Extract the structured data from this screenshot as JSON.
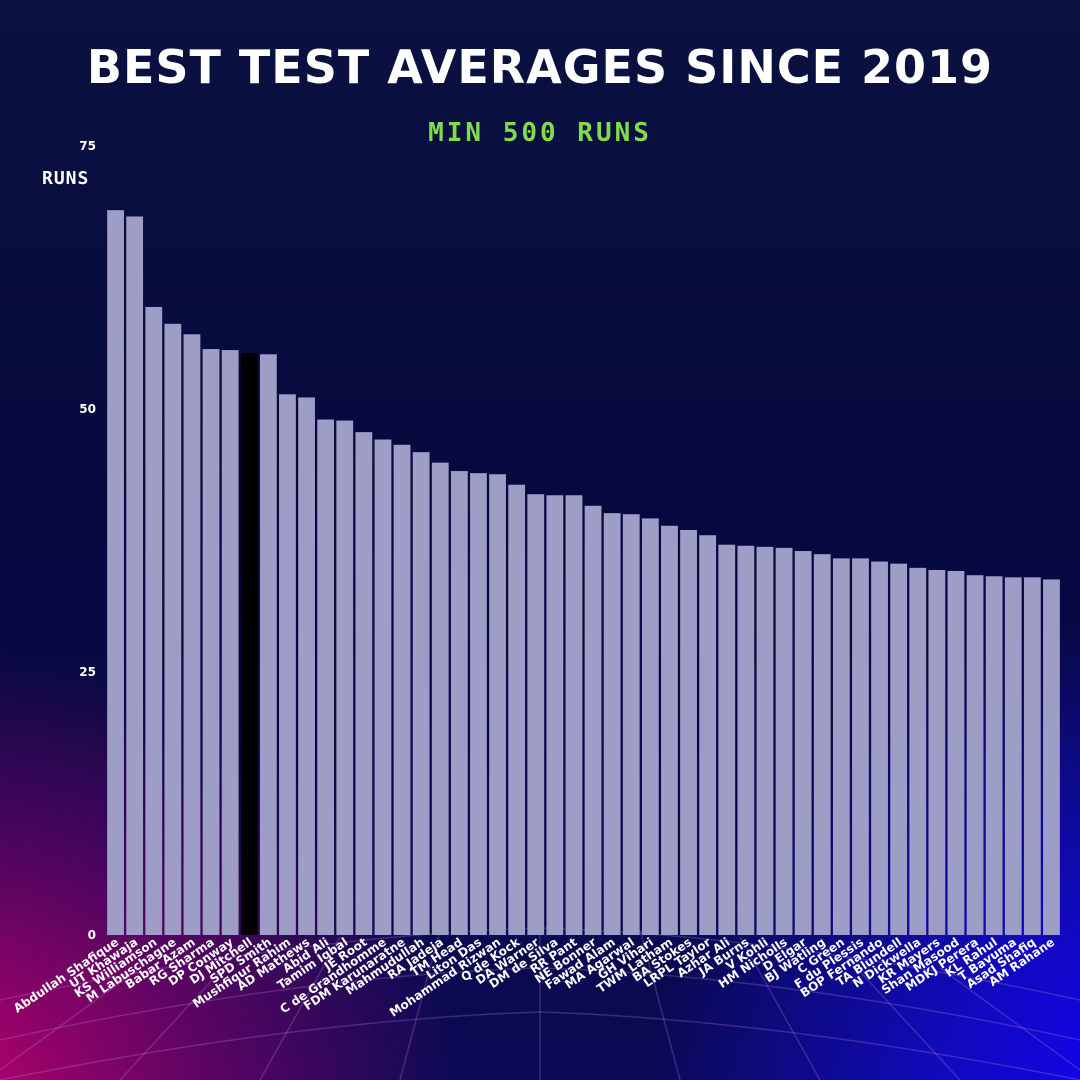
{
  "chart_data": {
    "type": "bar",
    "title": "BEST TEST AVERAGES SINCE 2019",
    "subtitle": "MIN 500 RUNS",
    "ylabel": "RUNS",
    "xlabel": "",
    "ylim": [
      0,
      75
    ],
    "yticks": [
      "0",
      "25",
      "50",
      "75"
    ],
    "grid": false,
    "legend": "none",
    "bar_color": "#9d9dc5",
    "highlight_color": "#000000",
    "highlight_category": "DJ Mitchell",
    "categories": [
      "Abdullah Shafique",
      "UT Khawaja",
      "KS Williamson",
      "M Labuschagne",
      "Babar Azam",
      "RG Sharma",
      "DP Conway",
      "DJ Mitchell",
      "SPD Smith",
      "Mushfiqur Rahim",
      "AD Mathews",
      "Abid Ali",
      "Tamim Iqbal",
      "JE Root",
      "C de Grandhomme",
      "FDM Karunaratne",
      "Mahmudullah",
      "RA Jadeja",
      "TM Head",
      "Liton Das",
      "Mohammad Rizwan",
      "Q de Kock",
      "DA Warner",
      "DM de Silva",
      "RR Pant",
      "NE Bonner",
      "Fawad Alam",
      "MA Agarwal",
      "GH Vihari",
      "TWM Latham",
      "BA Stokes",
      "LRPL Taylor",
      "Azhar Ali",
      "JA Burns",
      "V Kohli",
      "HM Nicholls",
      "D Elgar",
      "BJ Watling",
      "C Green",
      "F du Plessis",
      "BOP Fernando",
      "TA Blundell",
      "N Dickwella",
      "KR Mayers",
      "Shan Masood",
      "MDKJ Perera",
      "KL Rahul",
      "T Bavuma",
      "Asad Shafiq",
      "AM Rahane"
    ],
    "values": [
      68.9,
      68.3,
      59.7,
      58.1,
      57.1,
      55.7,
      55.6,
      55.3,
      55.2,
      51.4,
      51.1,
      49.0,
      48.9,
      47.8,
      47.1,
      46.6,
      45.9,
      44.9,
      44.1,
      43.9,
      43.8,
      42.8,
      41.9,
      41.8,
      41.8,
      40.8,
      40.1,
      40.0,
      39.6,
      38.9,
      38.5,
      38.0,
      37.1,
      37.0,
      36.9,
      36.8,
      36.5,
      36.2,
      35.8,
      35.8,
      35.5,
      35.3,
      34.9,
      34.7,
      34.6,
      34.2,
      34.1,
      34.0,
      34.0,
      33.8
    ]
  }
}
